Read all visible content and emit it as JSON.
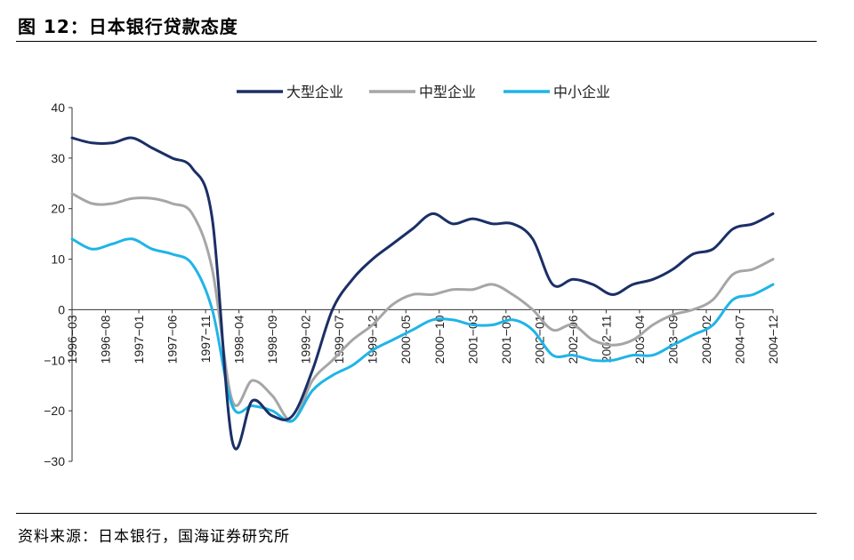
{
  "header": {
    "title": "图 12：日本银行贷款态度"
  },
  "footer": {
    "source": "资料来源：日本银行，国海证券研究所"
  },
  "chart_data": {
    "type": "line",
    "title": "",
    "xlabel": "",
    "ylabel": "",
    "ylim": [
      -30,
      40
    ],
    "yticks": [
      "40",
      "30",
      "20",
      "10",
      "0",
      "−10",
      "−20",
      "−30"
    ],
    "yticks_values": [
      40,
      30,
      20,
      10,
      0,
      -10,
      -20,
      -30
    ],
    "xtick_labels": [
      "1996−03",
      "1996−08",
      "1997−01",
      "1997−06",
      "1997−11",
      "1998−04",
      "1998−09",
      "1999−02",
      "1999−07",
      "1999−12",
      "2000−05",
      "2000−10",
      "2001−03",
      "2001−08",
      "2002−01",
      "2002−06",
      "2002−11",
      "2003−04",
      "2003−09",
      "2004−02",
      "2004−07",
      "2004−12"
    ],
    "x": [
      "1996−03",
      "1996−06",
      "1996−09",
      "1996−12",
      "1997−03",
      "1997−06",
      "1997−09",
      "1997−12",
      "1998−03",
      "1998−06",
      "1998−09",
      "1998−12",
      "1999−03",
      "1999−06",
      "1999−09",
      "1999−12",
      "2000−03",
      "2000−06",
      "2000−09",
      "2000−12",
      "2001−03",
      "2001−06",
      "2001−09",
      "2001−12",
      "2002−03",
      "2002−06",
      "2002−09",
      "2002−12",
      "2003−03",
      "2003−06",
      "2003−09",
      "2003−12",
      "2004−03",
      "2004−06",
      "2004−09",
      "2004−12"
    ],
    "series": [
      {
        "name": "大型企业",
        "color": "#1b2f66",
        "values": [
          34,
          33,
          33,
          34,
          32,
          30,
          28,
          18,
          -26,
          -18,
          -21,
          -21,
          -12,
          0,
          6,
          10,
          13,
          16,
          19,
          17,
          18,
          17,
          17,
          14,
          5,
          6,
          5,
          3,
          5,
          6,
          8,
          11,
          12,
          16,
          17,
          19
        ]
      },
      {
        "name": "中型企业",
        "color": "#a6a6a6",
        "values": [
          23,
          21,
          21,
          22,
          22,
          21,
          19,
          8,
          -18,
          -14,
          -17,
          -22,
          -14,
          -10,
          -6,
          -3,
          1,
          3,
          3,
          4,
          4,
          5,
          3,
          0,
          -4,
          -3,
          -6,
          -7,
          -6,
          -3,
          -1,
          0,
          2,
          7,
          8,
          10
        ]
      },
      {
        "name": "中小企业",
        "color": "#1fb4e8",
        "values": [
          14,
          12,
          13,
          14,
          12,
          11,
          9,
          0,
          -19,
          -19,
          -20,
          -22,
          -16,
          -13,
          -11,
          -8,
          -6,
          -4,
          -2,
          -2,
          -3,
          -3,
          -2,
          -4,
          -9,
          -9,
          -10,
          -10,
          -9,
          -9,
          -7,
          -5,
          -3,
          2,
          3,
          5
        ]
      }
    ],
    "legend_position": "top",
    "grid": false
  }
}
